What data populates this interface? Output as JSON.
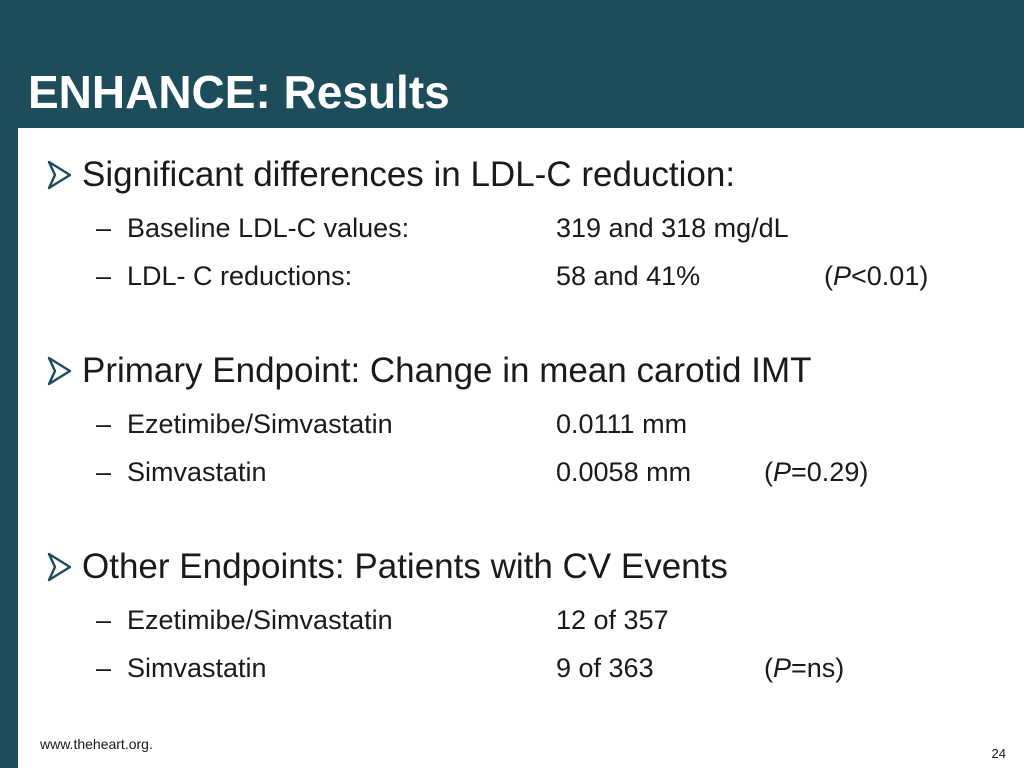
{
  "slide": {
    "title": "ENHANCE: Results",
    "footer_url": "www.theheart.org.",
    "page_number": "24"
  },
  "colors": {
    "header_bg": "#1d4d5a",
    "content_bg": "#ffffff",
    "bullet_accent": "#1d4d5a"
  },
  "bullet_icon": "arrow-bullet-icon",
  "sections": [
    {
      "heading": "Significant differences in LDL-C reduction:",
      "items": [
        {
          "dash": "–",
          "label": "Baseline LDL-C values:",
          "value": "319 and 318 mg/dL",
          "p_open": "",
          "p_letter": "",
          "p_rest": ""
        },
        {
          "dash": "–",
          "label": "LDL- C reductions:",
          "value": "58 and 41%",
          "p_open": "(",
          "p_letter": "P",
          "p_rest": "<0.01)"
        }
      ]
    },
    {
      "heading": "Primary Endpoint: Change in mean carotid IMT",
      "items": [
        {
          "dash": "–",
          "label": "Ezetimibe/Simvastatin",
          "value": "0.0111 mm",
          "p_open": "",
          "p_letter": "",
          "p_rest": ""
        },
        {
          "dash": "–",
          "label": "Simvastatin",
          "value": "0.0058 mm",
          "p_open": "(",
          "p_letter": "P",
          "p_rest": "=0.29)"
        }
      ]
    },
    {
      "heading": "Other Endpoints: Patients with CV Events",
      "items": [
        {
          "dash": "–",
          "label": "Ezetimibe/Simvastatin",
          "value": "12 of 357",
          "p_open": "",
          "p_letter": "",
          "p_rest": ""
        },
        {
          "dash": "–",
          "label": "Simvastatin",
          "value": "9 of 363",
          "p_open": "(",
          "p_letter": "P",
          "p_rest": "=ns)"
        }
      ]
    }
  ]
}
